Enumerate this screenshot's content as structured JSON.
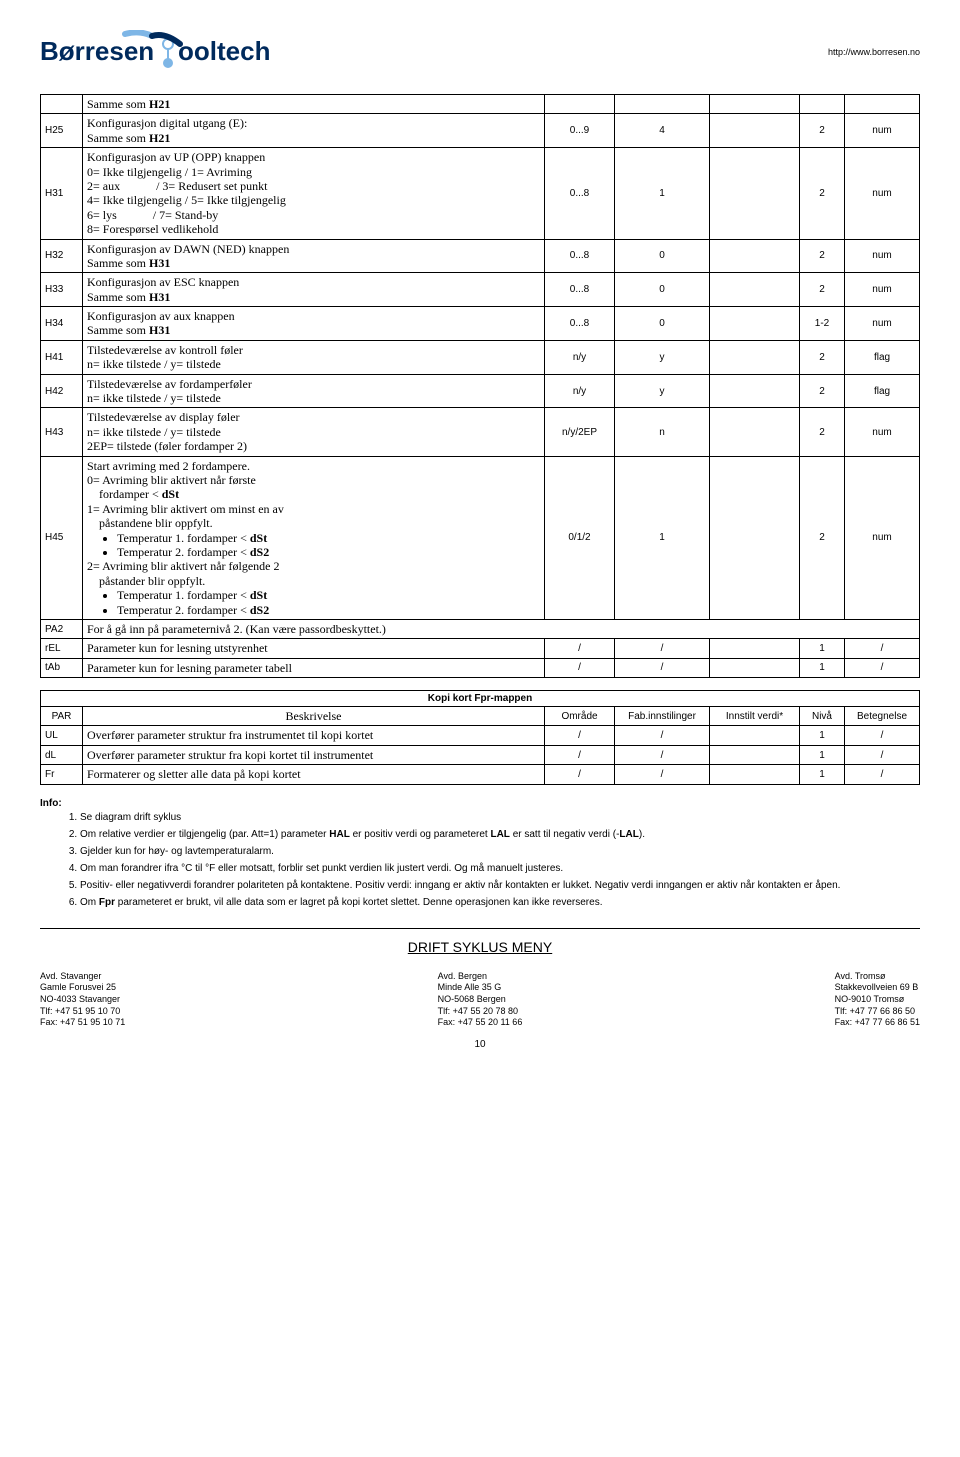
{
  "header": {
    "url": "http://www.borresen.no",
    "logo_text_1": "Børresen",
    "logo_text_2": "ooltech"
  },
  "table1": [
    {
      "code": "",
      "desc": "Samme som <b>H21</b>",
      "range": "",
      "fab": "",
      "innstilt": "",
      "niva": "",
      "bet": ""
    },
    {
      "code": "H25",
      "desc": "Konfigurasjon digital utgang (E):<br>Samme som <b>H21</b>",
      "range": "0...9",
      "fab": "4",
      "innstilt": "",
      "niva": "2",
      "bet": "num"
    },
    {
      "code": "H31",
      "desc": "Konfigurasjon av UP (OPP) knappen<br>0= Ikke tilgjengelig / 1= Avriming<br>2= aux &nbsp;&nbsp;&nbsp;&nbsp;&nbsp;&nbsp;&nbsp;&nbsp;&nbsp;&nbsp;&nbsp;/ 3= Redusert set punkt<br>4= Ikke tilgjengelig / 5= Ikke tilgjengelig<br>6= lys &nbsp;&nbsp;&nbsp;&nbsp;&nbsp;&nbsp;&nbsp;&nbsp;&nbsp;&nbsp;&nbsp;/ 7= Stand-by<br>8= Forespørsel vedlikehold",
      "range": "0...8",
      "fab": "1",
      "innstilt": "",
      "niva": "2",
      "bet": "num"
    },
    {
      "code": "H32",
      "desc": "Konfigurasjon av DAWN (NED) knappen<br>Samme som <b>H31</b>",
      "range": "0...8",
      "fab": "0",
      "innstilt": "",
      "niva": "2",
      "bet": "num"
    },
    {
      "code": "H33",
      "desc": "Konfigurasjon av ESC knappen<br>Samme som <b>H31</b>",
      "range": "0...8",
      "fab": "0",
      "innstilt": "",
      "niva": "2",
      "bet": "num"
    },
    {
      "code": "H34",
      "desc": "Konfigurasjon av aux knappen<br>Samme som <b>H31</b>",
      "range": "0...8",
      "fab": "0",
      "innstilt": "",
      "niva": "1-2",
      "bet": "num"
    },
    {
      "code": "H41",
      "desc": "Tilstedeværelse av kontroll føler<br>n= ikke tilstede / y= tilstede",
      "range": "n/y",
      "fab": "y",
      "innstilt": "",
      "niva": "2",
      "bet": "flag"
    },
    {
      "code": "H42",
      "desc": "Tilstedeværelse av fordamperføler<br>n= ikke tilstede / y= tilstede",
      "range": "n/y",
      "fab": "y",
      "innstilt": "",
      "niva": "2",
      "bet": "flag"
    },
    {
      "code": "H43",
      "desc": "Tilstedeværelse av display føler<br>n= ikke tilstede / y= tilstede<br>2EP= tilstede (føler fordamper 2)",
      "range": "n/y/2EP",
      "fab": "n",
      "innstilt": "",
      "niva": "2",
      "bet": "num"
    },
    {
      "code": "H45",
      "desc": "Start avriming med 2 fordampere.<br>0= Avriming blir aktivert når første<br>&nbsp;&nbsp;&nbsp;&nbsp;fordamper &lt; <b>dSt</b><br>1= Avriming blir aktivert om minst en av<br>&nbsp;&nbsp;&nbsp;&nbsp;påstandene blir oppfylt.<ul><li>Temperatur 1. fordamper &lt; <b>dSt</b></li><li>Temperatur 2. fordamper &lt; <b>dS2</b></li></ul>2= Avriming blir aktivert når følgende 2<br>&nbsp;&nbsp;&nbsp;&nbsp;påstander blir oppfylt.<ul><li>Temperatur 1. fordamper &lt; <b>dSt</b></li><li>Temperatur 2. fordamper &lt; <b>dS2</b></li></ul>",
      "range": "0/1/2",
      "fab": "1",
      "innstilt": "",
      "niva": "2",
      "bet": "num"
    },
    {
      "code": "PA2",
      "desc": "For å gå inn på parameternivå 2. (Kan være passordbeskyttet.)",
      "range": "",
      "fab": "",
      "innstilt": "",
      "niva": "",
      "bet": "",
      "span": true
    },
    {
      "code": "rEL",
      "desc": "Parameter kun for lesning utstyrenhet",
      "range": "/",
      "fab": "/",
      "innstilt": "",
      "niva": "1",
      "bet": "/"
    },
    {
      "code": "tAb",
      "desc": "Parameter kun for lesning parameter tabell",
      "range": "/",
      "fab": "/",
      "innstilt": "",
      "niva": "1",
      "bet": "/"
    }
  ],
  "kopi_title": "Kopi kort Fpr-mappen",
  "kopi_headers": [
    "PAR",
    "Beskrivelse",
    "Område",
    "Fab.innstilinger",
    "Innstilt verdi*",
    "Nivå",
    "Betegnelse"
  ],
  "kopi_rows": [
    {
      "code": "UL",
      "desc": "Overfører parameter struktur fra instrumentet til kopi kortet",
      "range": "/",
      "fab": "/",
      "innstilt": "",
      "niva": "1",
      "bet": "/"
    },
    {
      "code": "dL",
      "desc": "Overfører parameter struktur fra kopi kortet til instrumentet",
      "range": "/",
      "fab": "/",
      "innstilt": "",
      "niva": "1",
      "bet": "/"
    },
    {
      "code": "Fr",
      "desc": "Formaterer og sletter alle data på kopi kortet",
      "range": "/",
      "fab": "/",
      "innstilt": "",
      "niva": "1",
      "bet": "/"
    }
  ],
  "info_label": "Info:",
  "info_items": [
    "Se diagram drift syklus",
    "Om relative verdier er tilgjengelig (par. Att=1) parameter <b>HAL</b> er positiv verdi og parameteret <b>LAL</b> er satt til negativ verdi (-<b>LAL</b>).",
    "Gjelder kun for høy- og lavtemperaturalarm.",
    "Om man forandrer ifra °C til °F eller motsatt, forblir set punkt verdien lik justert verdi. Og må manuelt justeres.",
    "Positiv- eller negativverdi forandrer polariteten på kontaktene. Positiv verdi: inngang er aktiv når kontakten er lukket. Negativ verdi inngangen er aktiv når kontakten er åpen.",
    "Om <b>Fpr</b> parameteret er brukt, vil alle data som er lagret på kopi kortet slettet. Denne operasjonen kan ikke reverseres."
  ],
  "drift_title": "DRIFT SYKLUS MENY",
  "footer": {
    "left": [
      "Avd. Stavanger",
      "Gamle Forusvei 25",
      "NO-4033 Stavanger",
      "Tlf: +47 51 95 10 70",
      "Fax: +47 51 95 10 71"
    ],
    "center": [
      "Avd. Bergen",
      "Minde Alle 35 G",
      "NO-5068 Bergen",
      "Tlf: +47 55 20 78 80",
      "Fax: +47 55 20 11 66"
    ],
    "right": [
      "Avd. Tromsø",
      "Stakkevollveien 69 B",
      "NO-9010 Tromsø",
      "Tlf: +47 77 66 86 50",
      "Fax: +47 77 66 86 51"
    ]
  },
  "pagenum": "10"
}
